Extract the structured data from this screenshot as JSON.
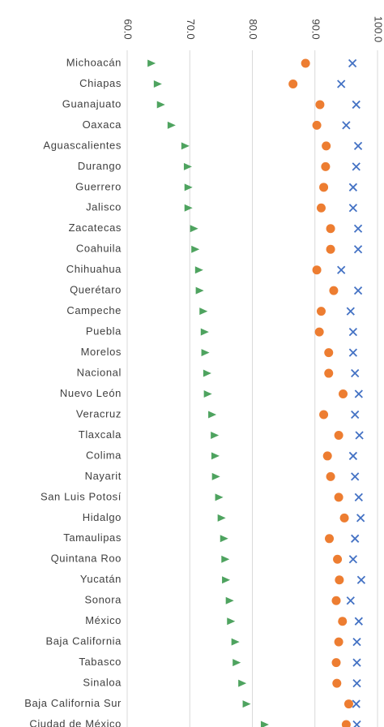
{
  "chart_data": {
    "type": "dot",
    "categories": [
      "Michoacán",
      "Chiapas",
      "Guanajuato",
      "Oaxaca",
      "Aguascalientes",
      "Durango",
      "Guerrero",
      "Jalisco",
      "Zacatecas",
      "Coahuila",
      "Chihuahua",
      "Querétaro",
      "Campeche",
      "Puebla",
      "Morelos",
      "Nacional",
      "Nuevo León",
      "Veracruz",
      "Tlaxcala",
      "Colima",
      "Nayarit",
      "San Luis Potosí",
      "Hidalgo",
      "Tamaulipas",
      "Quintana Roo",
      "Yucatán",
      "Sonora",
      "México",
      "Baja California",
      "Tabasco",
      "Sinaloa",
      "Baja California Sur",
      "Ciudad de México"
    ],
    "series": [
      {
        "color": "#4ea35f",
        "marker": "triangle",
        "values": [
          63.9,
          64.9,
          65.4,
          67.1,
          69.3,
          69.7,
          69.8,
          69.8,
          70.7,
          70.9,
          71.5,
          71.6,
          72.2,
          72.4,
          72.5,
          72.8,
          72.9,
          73.6,
          74.0,
          74.1,
          74.2,
          74.7,
          75.1,
          75.5,
          75.7,
          75.8,
          76.4,
          76.6,
          77.3,
          77.5,
          78.4,
          79.1,
          82.0
        ]
      },
      {
        "color": "#ed7d31",
        "marker": "circle",
        "values": [
          88.5,
          86.5,
          90.8,
          90.3,
          91.8,
          91.7,
          91.4,
          91.0,
          92.5,
          92.5,
          90.3,
          93.0,
          91.0,
          90.7,
          92.2,
          92.2,
          94.5,
          91.4,
          93.8,
          92.0,
          92.5,
          93.8,
          94.7,
          92.3,
          93.6,
          93.9,
          93.4,
          94.4,
          93.8,
          93.4,
          93.5,
          95.4,
          95.0
        ]
      },
      {
        "color": "#4472c4",
        "marker": "x",
        "values": [
          96.0,
          94.2,
          96.6,
          95.0,
          96.9,
          96.6,
          96.1,
          96.1,
          96.9,
          96.9,
          94.2,
          96.9,
          95.7,
          96.1,
          96.1,
          96.4,
          97.0,
          96.4,
          97.1,
          96.1,
          96.4,
          97.0,
          97.3,
          96.4,
          96.1,
          97.4,
          95.7,
          97.0,
          96.7,
          96.7,
          96.7,
          96.6,
          96.7
        ]
      }
    ],
    "xlim": [
      60,
      100
    ],
    "xticks": [
      {
        "value": 60,
        "label": "60.0"
      },
      {
        "value": 70,
        "label": "70.0"
      },
      {
        "value": 80,
        "label": "80.0"
      },
      {
        "value": 90,
        "label": "90.0"
      },
      {
        "value": 100,
        "label": "100.0"
      }
    ],
    "grid": true
  }
}
